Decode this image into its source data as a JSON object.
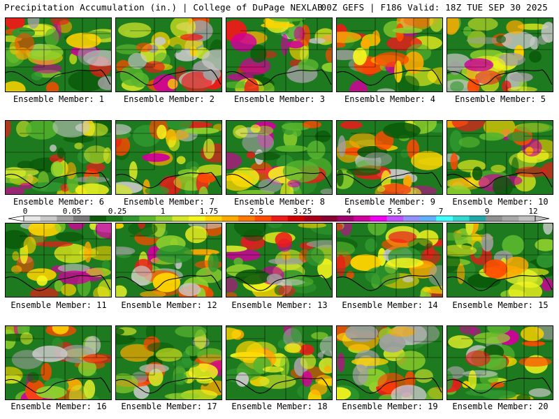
{
  "header": {
    "left": "Precipitation Accumulation (in.) | College of DuPage NEXLAB",
    "right": "00Z GEFS | F186 Valid: 18Z TUE SEP 30 2025"
  },
  "caption_prefix": "Ensemble Member: ",
  "members": [
    "1",
    "2",
    "3",
    "4",
    "5",
    "6",
    "7",
    "8",
    "9",
    "10",
    "11",
    "12",
    "13",
    "14",
    "15",
    "16",
    "17",
    "18",
    "19",
    "20"
  ],
  "colorbar": {
    "labels": [
      "0",
      "0.05",
      "0.25",
      "1",
      "1.75",
      "2.5",
      "3.25",
      "4",
      "5.5",
      "7",
      "9",
      "12"
    ],
    "colors": [
      "#e8e8e8",
      "#c8c8c8",
      "#a0a0a0",
      "#787878",
      "#0a5a0a",
      "#1c7a1c",
      "#2f962f",
      "#58b52e",
      "#8fd12d",
      "#d3e62a",
      "#f5f51e",
      "#ffd400",
      "#ffaa00",
      "#ff7800",
      "#ff4a00",
      "#ee1a1a",
      "#d00000",
      "#a80018",
      "#880030",
      "#a0006e",
      "#d0009a",
      "#f000f0",
      "#c050ff",
      "#9090ff",
      "#60b0ff",
      "#40ffff",
      "#30d8d0",
      "#20a8a8",
      "#909090",
      "#a8a8a8",
      "#c0c0c0"
    ]
  }
}
